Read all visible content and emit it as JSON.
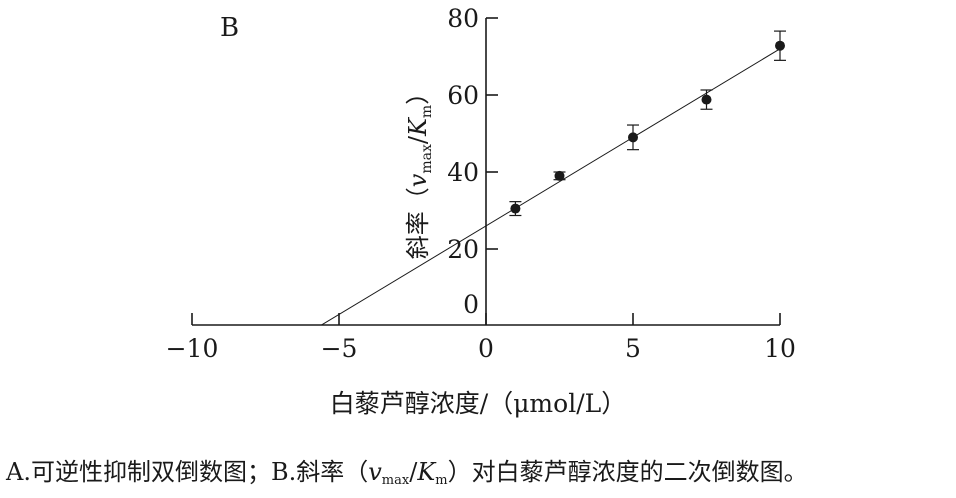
{
  "chart_data": {
    "type": "scatter",
    "panel_label": "B",
    "xlabel": "白藜芦醇浓度/（μmol/L）",
    "ylabel": "斜率（vmax/Km）",
    "ylabel_parts": {
      "prefix": "斜率（",
      "v": "v",
      "vsub": "max",
      "slash": "/",
      "K": "K",
      "Ksub": "m",
      "suffix": "）"
    },
    "xlim": [
      -10,
      10
    ],
    "ylim": [
      0,
      80
    ],
    "x_ticks": [
      -10,
      -5,
      0,
      5,
      10
    ],
    "x_tick_labels": [
      "−10",
      "−5",
      "0",
      "5",
      "10"
    ],
    "y_ticks": [
      0,
      20,
      40,
      60,
      80
    ],
    "y_tick_labels": [
      "0",
      "20",
      "40",
      "60",
      "80"
    ],
    "series": [
      {
        "points": [
          {
            "x": 1,
            "y": 30.5,
            "err": 1.8
          },
          {
            "x": 2.5,
            "y": 39,
            "err": 1
          },
          {
            "x": 5,
            "y": 49,
            "err": 3.2
          },
          {
            "x": 7.5,
            "y": 58.8,
            "err": 2.5
          },
          {
            "x": 10,
            "y": 72.8,
            "err": 3.8
          }
        ]
      }
    ],
    "fit_line": {
      "x_start": -5.6,
      "x_end": 10,
      "slope": 4.6,
      "intercept": 26
    },
    "grid": false,
    "legend": "none"
  },
  "caption": {
    "part1": "A.可逆性抑制双倒数图；B.斜率（",
    "v": "v",
    "vsub": "max",
    "slash": "/",
    "K": "K",
    "Ksub": "m",
    "part2": "）对白藜芦醇浓度的二次倒数图。"
  }
}
